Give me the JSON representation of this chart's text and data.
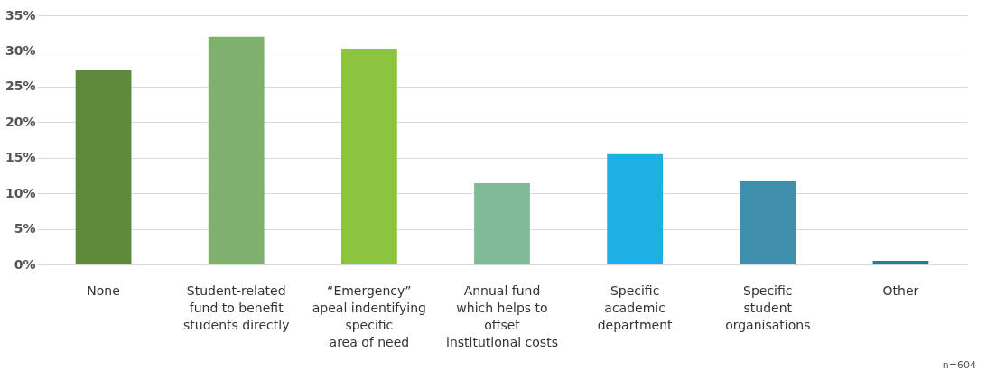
{
  "chart_data": {
    "type": "bar",
    "categories": [
      "None",
      "Student-related\nfund to benefit\nstudents directly",
      "“Emergency”\napeal indentifying\nspecific\narea of need",
      "Annual fund\nwhich helps to\noffset\ninstitutional costs",
      "Specific\nacademic\ndepartment",
      "Specific\nstudent\norganisations",
      "Other"
    ],
    "values": [
      27.3,
      32.0,
      30.3,
      11.4,
      15.5,
      11.7,
      0.5
    ],
    "colors": [
      "#5f8a3a",
      "#80b06e",
      "#8cc43f",
      "#80ba96",
      "#1cb0e4",
      "#3f8eaa",
      "#1d7fa4"
    ],
    "ylim": [
      0,
      35
    ],
    "yticks": [
      {
        "value": 0,
        "label": "0%"
      },
      {
        "value": 5,
        "label": "5%"
      },
      {
        "value": 10,
        "label": "10%"
      },
      {
        "value": 15,
        "label": "15%"
      },
      {
        "value": 20,
        "label": "20%"
      },
      {
        "value": 25,
        "label": "25%"
      },
      {
        "value": 30,
        "label": "30%"
      },
      {
        "value": 35,
        "label": "35%"
      }
    ],
    "grid": "y",
    "legend": false,
    "annotations": [
      "n=604"
    ]
  }
}
